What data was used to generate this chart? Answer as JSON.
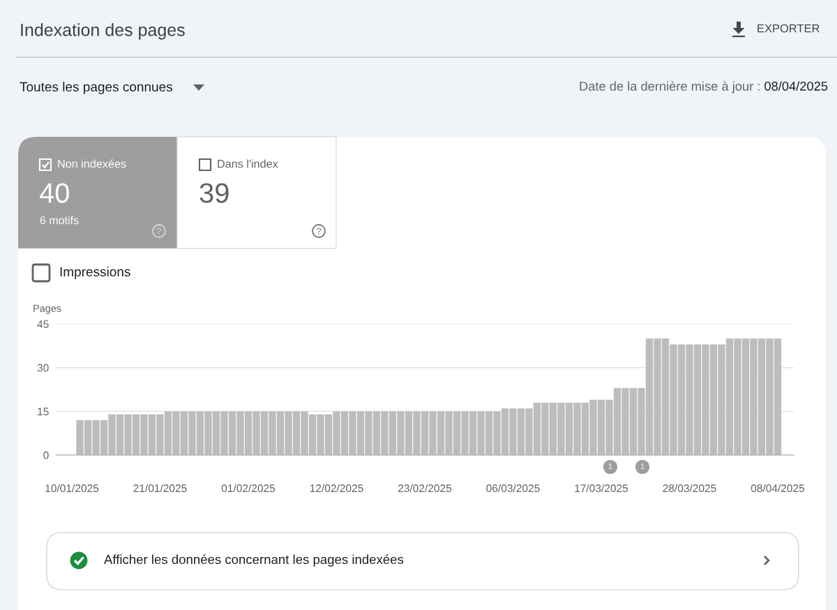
{
  "chart_data": {
    "type": "bar",
    "title": "Indexation des pages",
    "ylabel": "Pages",
    "x": [
      "2025-01-11",
      "2025-01-12",
      "2025-01-13",
      "2025-01-14",
      "2025-01-15",
      "2025-01-16",
      "2025-01-17",
      "2025-01-18",
      "2025-01-19",
      "2025-01-20",
      "2025-01-21",
      "2025-01-22",
      "2025-01-23",
      "2025-01-24",
      "2025-01-25",
      "2025-01-26",
      "2025-01-27",
      "2025-01-28",
      "2025-01-29",
      "2025-01-30",
      "2025-01-31",
      "2025-02-01",
      "2025-02-02",
      "2025-02-03",
      "2025-02-04",
      "2025-02-05",
      "2025-02-06",
      "2025-02-07",
      "2025-02-08",
      "2025-02-09",
      "2025-02-10",
      "2025-02-11",
      "2025-02-12",
      "2025-02-13",
      "2025-02-14",
      "2025-02-15",
      "2025-02-16",
      "2025-02-17",
      "2025-02-18",
      "2025-02-19",
      "2025-02-20",
      "2025-02-21",
      "2025-02-22",
      "2025-02-23",
      "2025-02-24",
      "2025-02-25",
      "2025-02-26",
      "2025-02-27",
      "2025-02-28",
      "2025-03-01",
      "2025-03-02",
      "2025-03-03",
      "2025-03-04",
      "2025-03-05",
      "2025-03-06",
      "2025-03-07",
      "2025-03-08",
      "2025-03-09",
      "2025-03-10",
      "2025-03-11",
      "2025-03-12",
      "2025-03-13",
      "2025-03-14",
      "2025-03-15",
      "2025-03-16",
      "2025-03-17",
      "2025-03-18",
      "2025-03-19",
      "2025-03-20",
      "2025-03-21",
      "2025-03-22",
      "2025-03-23",
      "2025-03-24",
      "2025-03-25",
      "2025-03-26",
      "2025-03-27",
      "2025-03-28",
      "2025-03-29",
      "2025-03-30",
      "2025-03-31",
      "2025-04-01",
      "2025-04-02",
      "2025-04-03",
      "2025-04-04",
      "2025-04-05",
      "2025-04-06",
      "2025-04-07",
      "2025-04-08"
    ],
    "values": [
      12,
      12,
      12,
      12,
      14,
      14,
      14,
      14,
      14,
      14,
      14,
      15,
      15,
      15,
      15,
      15,
      15,
      15,
      15,
      15,
      15,
      15,
      15,
      15,
      15,
      15,
      15,
      15,
      15,
      14,
      14,
      14,
      15,
      15,
      15,
      15,
      15,
      15,
      15,
      15,
      15,
      15,
      15,
      15,
      15,
      15,
      15,
      15,
      15,
      15,
      15,
      15,
      15,
      16,
      16,
      16,
      16,
      18,
      18,
      18,
      18,
      18,
      18,
      18,
      19,
      19,
      19,
      23,
      23,
      23,
      23,
      40,
      40,
      40,
      38,
      38,
      38,
      38,
      38,
      38,
      38,
      40,
      40,
      40,
      40,
      40,
      40,
      40
    ],
    "color": "#bdbdbd",
    "xlim": [
      "2025-01-08",
      "2025-04-10"
    ],
    "xticks": [
      {
        "value": "2025-01-10",
        "label": "10/01/2025"
      },
      {
        "value": "2025-01-21",
        "label": "21/01/2025"
      },
      {
        "value": "2025-02-01",
        "label": "01/02/2025"
      },
      {
        "value": "2025-02-12",
        "label": "12/02/2025"
      },
      {
        "value": "2025-02-23",
        "label": "23/02/2025"
      },
      {
        "value": "2025-03-06",
        "label": "06/03/2025"
      },
      {
        "value": "2025-03-17",
        "label": "17/03/2025"
      },
      {
        "value": "2025-03-28",
        "label": "28/03/2025"
      },
      {
        "value": "2025-04-08",
        "label": "08/04/2025"
      }
    ],
    "ylim": [
      0,
      45
    ],
    "yticks": [
      0,
      15,
      30,
      45
    ],
    "grid": "y",
    "annotations": [
      "EXPORTER",
      "Toutes les pages connues",
      "Date de la dernière mise à jour :",
      "08/04/2025",
      "Non indexées",
      "40",
      "6 motifs",
      "Dans l'index",
      "39",
      "Impressions",
      "Afficher les données concernant les pages indexées",
      "1",
      "1"
    ]
  }
}
